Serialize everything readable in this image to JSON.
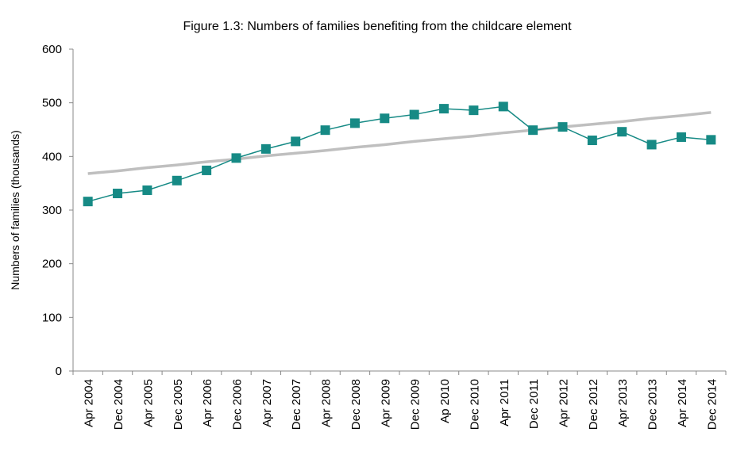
{
  "chart_data": {
    "type": "line",
    "title": "Figure 1.3: Numbers of families benefiting from the childcare element",
    "y_label": "Numbers of families (thousands)",
    "categories": [
      "Apr 2004",
      "Dec 2004",
      "Apr 2005",
      "Dec 2005",
      "Apr 2006",
      "Dec 2006",
      "Apr 2007",
      "Dec 2007",
      "Apr 2008",
      "Dec 2008",
      "Apr 2009",
      "Dec 2009",
      "Ap 2010",
      "Dec 2010",
      "Apr 2011",
      "Dec 2011",
      "Apr 2012",
      "Dec 2012",
      "Apr 2013",
      "Dec 2013",
      "Apr 2014",
      "Dec 2014"
    ],
    "series": [
      {
        "color": "#168a85",
        "marker": "square",
        "width": 1.5,
        "values": [
          316,
          331,
          337,
          355,
          374,
          397,
          414,
          428,
          449,
          462,
          471,
          478,
          489,
          486,
          493,
          449,
          455,
          430,
          446,
          422,
          436,
          431
        ]
      },
      {
        "color": "#bfbfbf",
        "width": 3.5,
        "values": [
          368,
          373,
          379,
          384,
          390,
          395,
          401,
          406,
          411,
          417,
          422,
          428,
          433,
          438,
          444,
          449,
          455,
          460,
          465,
          471,
          476,
          482
        ]
      }
    ],
    "ylim": [
      0,
      600
    ],
    "yticks": [
      0,
      100,
      200,
      300,
      400,
      500,
      600
    ],
    "grid": false
  }
}
